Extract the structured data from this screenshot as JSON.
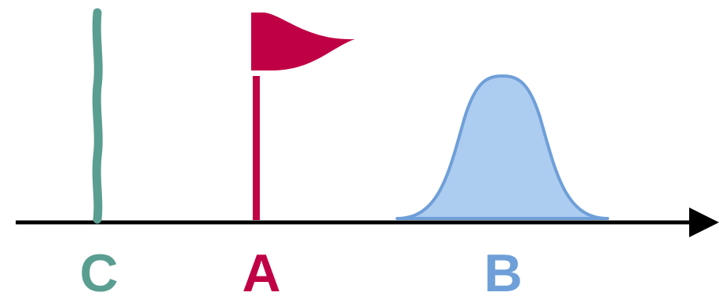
{
  "markers": [
    {
      "id": "C",
      "label": "C",
      "shape": "line",
      "color": "#5a9e91"
    },
    {
      "id": "A",
      "label": "A",
      "shape": "flag",
      "color": "#c00045"
    },
    {
      "id": "B",
      "label": "B",
      "shape": "bell-curve",
      "color": "#6f9fd8",
      "fill": "#acccf0"
    }
  ],
  "axis": {
    "color": "#000000",
    "direction": "right"
  }
}
